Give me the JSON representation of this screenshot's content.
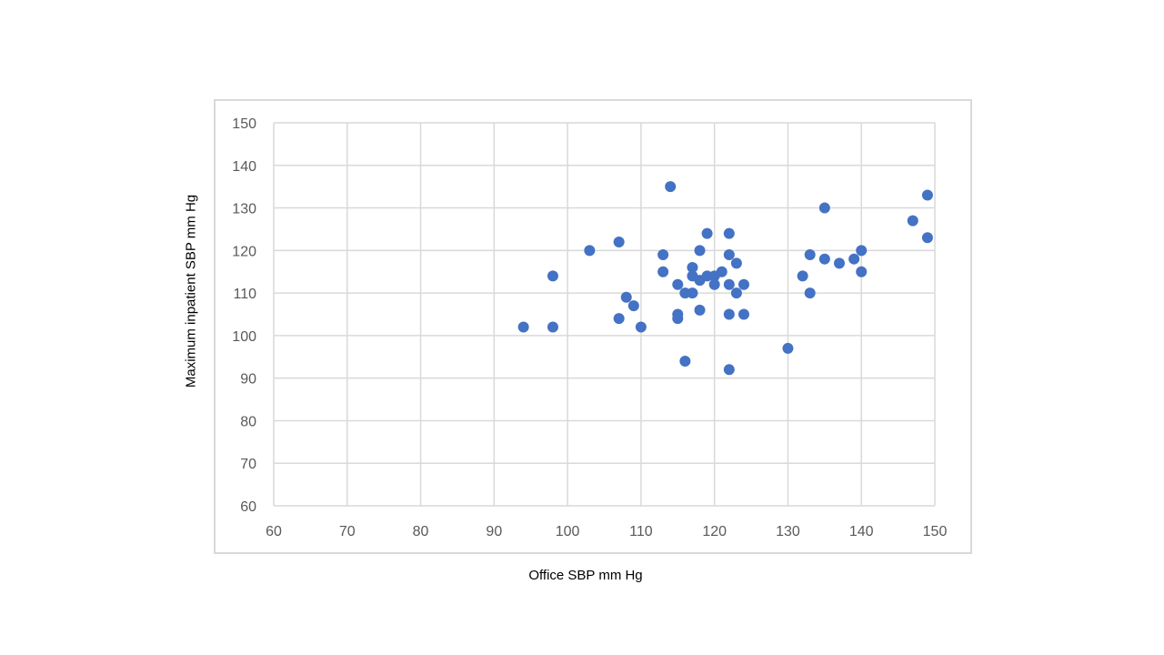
{
  "colors": {
    "marker": "#4472c4",
    "grid": "#d9d9d9",
    "tick_text": "#595959",
    "frame": "#d9d9d9"
  },
  "chart_data": {
    "type": "scatter",
    "title": "",
    "xlabel": "Office SBP mm Hg",
    "ylabel": "Maximum inpatient SBP mm Hg",
    "xlim": [
      60,
      150
    ],
    "ylim": [
      60,
      150
    ],
    "x_ticks": [
      60,
      70,
      80,
      90,
      100,
      110,
      120,
      130,
      140,
      150
    ],
    "y_ticks": [
      60,
      70,
      80,
      90,
      100,
      110,
      120,
      130,
      140,
      150
    ],
    "grid": true,
    "legend": "none",
    "series": [
      {
        "points": [
          [
            94,
            102
          ],
          [
            98,
            114
          ],
          [
            98,
            102
          ],
          [
            103,
            120
          ],
          [
            107,
            122
          ],
          [
            107,
            104
          ],
          [
            108,
            109
          ],
          [
            109,
            107
          ],
          [
            110,
            102
          ],
          [
            113,
            119
          ],
          [
            113,
            115
          ],
          [
            114,
            135
          ],
          [
            115,
            112
          ],
          [
            115,
            105
          ],
          [
            115,
            104
          ],
          [
            116,
            110
          ],
          [
            116,
            94
          ],
          [
            117,
            116
          ],
          [
            117,
            114
          ],
          [
            117,
            110
          ],
          [
            118,
            120
          ],
          [
            118,
            113
          ],
          [
            118,
            106
          ],
          [
            119,
            124
          ],
          [
            119,
            114
          ],
          [
            120,
            114
          ],
          [
            120,
            112
          ],
          [
            121,
            115
          ],
          [
            122,
            124
          ],
          [
            122,
            119
          ],
          [
            122,
            112
          ],
          [
            122,
            105
          ],
          [
            122,
            92
          ],
          [
            123,
            117
          ],
          [
            123,
            110
          ],
          [
            124,
            112
          ],
          [
            124,
            105
          ],
          [
            130,
            97
          ],
          [
            132,
            114
          ],
          [
            133,
            119
          ],
          [
            133,
            110
          ],
          [
            135,
            130
          ],
          [
            135,
            118
          ],
          [
            137,
            117
          ],
          [
            139,
            118
          ],
          [
            140,
            120
          ],
          [
            140,
            115
          ],
          [
            147,
            127
          ],
          [
            149,
            133
          ],
          [
            149,
            123
          ]
        ]
      }
    ]
  }
}
